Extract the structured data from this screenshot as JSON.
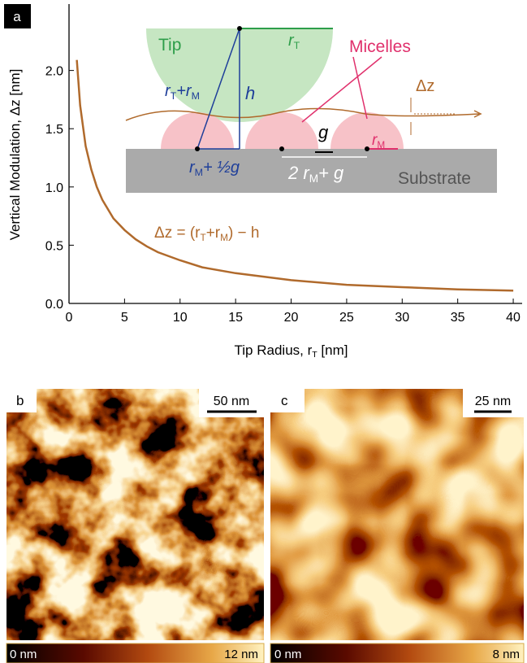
{
  "chart_data": {
    "type": "line",
    "panel_label": "a",
    "x_label": [
      "Tip Radius, r",
      "T",
      " [nm]"
    ],
    "y_label": "Vertical Modulation, Δz [nm]",
    "x": [
      0.7,
      1,
      1.5,
      2,
      2.5,
      3,
      4,
      5,
      6,
      7,
      8,
      10,
      12,
      15,
      20,
      25,
      30,
      35,
      40
    ],
    "values": [
      2.09,
      1.7,
      1.35,
      1.15,
      1.0,
      0.89,
      0.73,
      0.63,
      0.55,
      0.49,
      0.44,
      0.37,
      0.31,
      0.26,
      0.2,
      0.16,
      0.14,
      0.12,
      0.11
    ],
    "color": "#b06a2c",
    "xlim": [
      0,
      40.8
    ],
    "ylim": [
      0,
      2.57
    ],
    "xticks": [
      0,
      5,
      10,
      15,
      20,
      25,
      30,
      35,
      40
    ],
    "yticks": [
      {
        "value": 0,
        "label": "0.0"
      },
      0.5,
      {
        "value": 1,
        "label": "1.0"
      },
      1.5,
      {
        "value": 2,
        "label": "2.0"
      }
    ],
    "formula": [
      "Δz = (r",
      "T",
      "+r",
      "M",
      ") − h"
    ],
    "inset": {
      "tip": "Tip",
      "r_T": [
        "r",
        "T"
      ],
      "micelles": "Micelles",
      "delta_z": "Δz",
      "r_T_plus_r_M": [
        "r",
        "T",
        "+r",
        "M"
      ],
      "h": "h",
      "g": "g",
      "r_M": [
        "r",
        "M"
      ],
      "r_M_half_g": [
        "r",
        "M",
        "+ ½g"
      ],
      "two_r_M_g": [
        "2 r",
        "M",
        "+ g"
      ],
      "substrate": "Substrate"
    }
  },
  "panels": [
    {
      "label": "b",
      "scale_bar": "50 nm",
      "colorbar": [
        "0 nm",
        "12 nm"
      ]
    },
    {
      "label": "c",
      "scale_bar": "25 nm",
      "colorbar": [
        "0 nm",
        "8 nm"
      ]
    }
  ]
}
